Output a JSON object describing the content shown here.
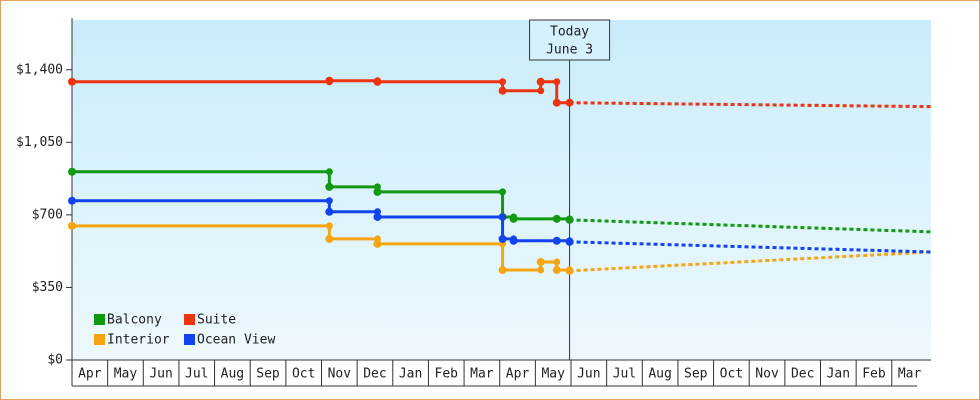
{
  "chart_data": {
    "type": "step-line",
    "xlim": [
      0,
      24.1
    ],
    "ylim": [
      0,
      1640
    ],
    "yticks": [
      {
        "value": 0,
        "label": "$0"
      },
      {
        "value": 350,
        "label": "$350"
      },
      {
        "value": 700,
        "label": "$700"
      },
      {
        "value": 1050,
        "label": "$1,050"
      },
      {
        "value": 1400,
        "label": "$1,400"
      }
    ],
    "xticks": [
      {
        "value": 0.5,
        "label": "Apr"
      },
      {
        "value": 1.5,
        "label": "May"
      },
      {
        "value": 2.5,
        "label": "Jun"
      },
      {
        "value": 3.5,
        "label": "Jul"
      },
      {
        "value": 4.5,
        "label": "Aug"
      },
      {
        "value": 5.5,
        "label": "Sep"
      },
      {
        "value": 6.5,
        "label": "Oct"
      },
      {
        "value": 7.5,
        "label": "Nov"
      },
      {
        "value": 8.5,
        "label": "Dec"
      },
      {
        "value": 9.5,
        "label": "Jan"
      },
      {
        "value": 10.5,
        "label": "Feb"
      },
      {
        "value": 11.5,
        "label": "Mar"
      },
      {
        "value": 12.5,
        "label": "Apr"
      },
      {
        "value": 13.5,
        "label": "May"
      },
      {
        "value": 14.5,
        "label": "Jun"
      },
      {
        "value": 15.5,
        "label": "Jul"
      },
      {
        "value": 16.5,
        "label": "Aug"
      },
      {
        "value": 17.5,
        "label": "Sep"
      },
      {
        "value": 18.5,
        "label": "Oct"
      },
      {
        "value": 19.5,
        "label": "Nov"
      },
      {
        "value": 20.5,
        "label": "Dec"
      },
      {
        "value": 21.5,
        "label": "Jan"
      },
      {
        "value": 22.5,
        "label": "Feb"
      },
      {
        "value": 23.5,
        "label": "Mar"
      }
    ],
    "today": {
      "x": 13.96,
      "label": "Today",
      "date": "June 3"
    },
    "legend": "lower left",
    "series": [
      {
        "name": "Balcony",
        "color": "#119911",
        "x": [
          0,
          7.22,
          8.57,
          12.08,
          12.39,
          13.6,
          13.96
        ],
        "values": [
          908,
          835,
          811,
          690,
          681,
          681,
          676
        ],
        "projection": {
          "x": [
            13.96,
            24.1
          ],
          "values": [
            676,
            618
          ]
        }
      },
      {
        "name": "Suite",
        "color": "#ee3311",
        "x": [
          0,
          7.22,
          8.57,
          12.08,
          13.15,
          13.6,
          13.96
        ],
        "values": [
          1342,
          1347,
          1342,
          1299,
          1342,
          1241,
          1241
        ],
        "projection": {
          "x": [
            13.96,
            24.1
          ],
          "values": [
            1241,
            1222
          ]
        }
      },
      {
        "name": "Interior",
        "color": "#f5a511",
        "x": [
          0,
          7.22,
          8.57,
          12.08,
          13.15,
          13.6,
          13.96
        ],
        "values": [
          647,
          584,
          560,
          434,
          473,
          434,
          430
        ],
        "projection": {
          "x": [
            13.96,
            24.1
          ],
          "values": [
            430,
            521
          ]
        }
      },
      {
        "name": "Ocean View",
        "color": "#1144ee",
        "x": [
          0,
          7.22,
          8.57,
          12.08,
          12.39,
          13.6,
          13.96
        ],
        "values": [
          768,
          715,
          690,
          584,
          575,
          575,
          570
        ],
        "projection": {
          "x": [
            13.96,
            24.1
          ],
          "values": [
            570,
            521
          ]
        }
      }
    ]
  }
}
